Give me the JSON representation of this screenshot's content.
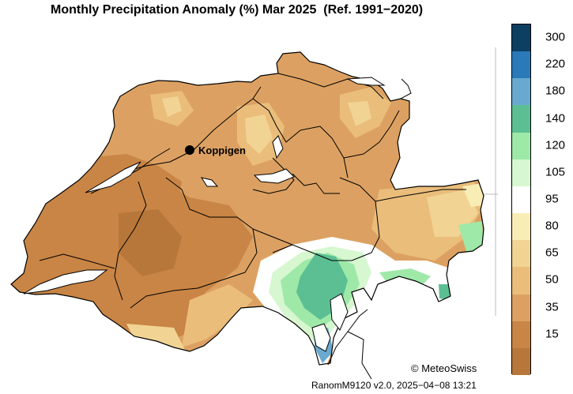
{
  "title": "Monthly Precipitation Anomaly (%) Mar 2025  (Ref. 1991−2020)",
  "station": {
    "name": "Koppigen"
  },
  "colorbar": {
    "levels": [
      {
        "label": "",
        "color": "#b8773a"
      },
      {
        "label": "15",
        "color": "#c98545"
      },
      {
        "label": "35",
        "color": "#dca162"
      },
      {
        "label": "50",
        "color": "#eabd7b"
      },
      {
        "label": "65",
        "color": "#f1d494"
      },
      {
        "label": "80",
        "color": "#f9edb6"
      },
      {
        "label": "95",
        "color": "#ffffff"
      },
      {
        "label": "105",
        "color": "#d6f7cf"
      },
      {
        "label": "120",
        "color": "#9ee9a8"
      },
      {
        "label": "140",
        "color": "#5cbf93"
      },
      {
        "label": "180",
        "color": "#6aa9cf"
      },
      {
        "label": "220",
        "color": "#2a79b8"
      },
      {
        "label": "300",
        "color": "#0d3f63"
      }
    ]
  },
  "copyright": "© MeteoSwiss",
  "version": "RanomM9120 v2.0, 2025−04−08 13:21"
}
